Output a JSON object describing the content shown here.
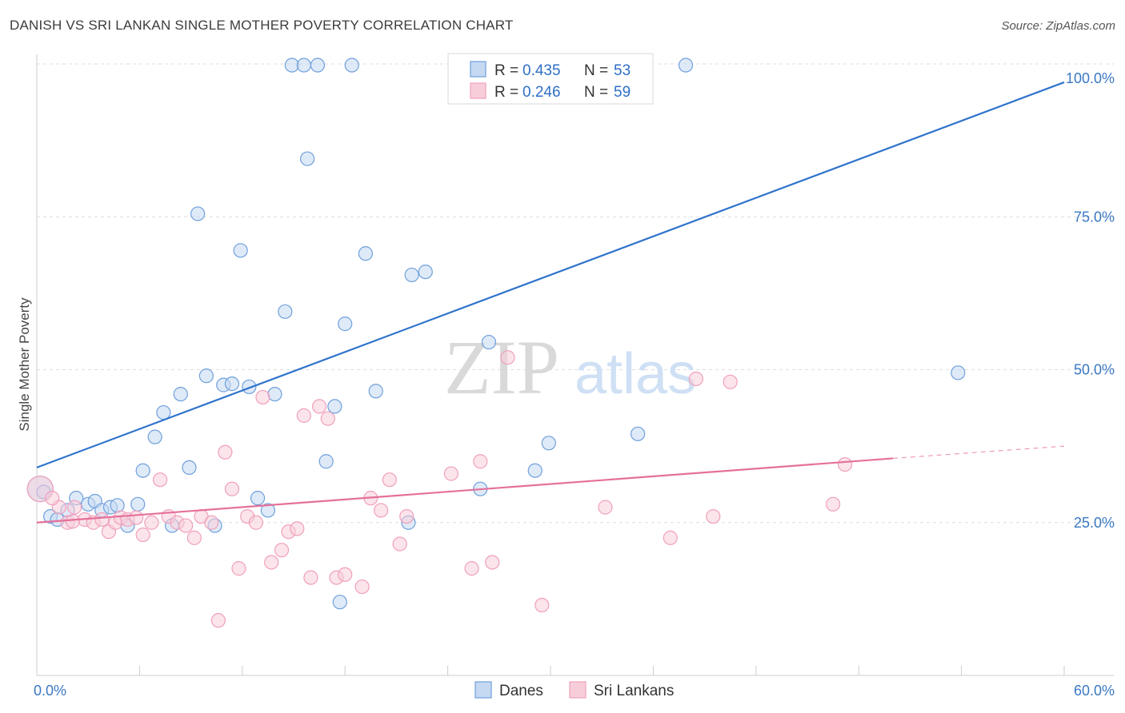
{
  "title": "DANISH VS SRI LANKAN SINGLE MOTHER POVERTY CORRELATION CHART",
  "source": "Source: ZipAtlas.com",
  "watermark": {
    "zip": "ZIP",
    "atlas": "atlas"
  },
  "chart_data": {
    "type": "scatter",
    "ylabel": "Single Mother Poverty",
    "xlim": [
      0,
      60
    ],
    "ylim": [
      0,
      100
    ],
    "x_ticks": [
      "0.0%",
      "60.0%"
    ],
    "y_ticks": [
      {
        "value": 100,
        "label": "100.0%"
      },
      {
        "value": 75,
        "label": "75.0%"
      },
      {
        "value": 50,
        "label": "50.0%"
      },
      {
        "value": 25,
        "label": "25.0%"
      }
    ],
    "grid": true,
    "legend_position": "top-center",
    "legend": [
      {
        "r_label": "R = ",
        "r_value": "0.435",
        "n_label": "N = ",
        "n_value": "53",
        "color": "#6fa0dc"
      },
      {
        "r_label": "R = ",
        "r_value": "0.246",
        "n_label": "N = ",
        "n_value": "59",
        "color": "#f0a0bc"
      }
    ],
    "series": [
      {
        "name": "Danes",
        "color": "#6fa0dc",
        "fill": "#c5d9f2",
        "trend": {
          "x0": 0,
          "y0": 34,
          "x1": 60,
          "y1": 97
        },
        "points": [
          [
            0.2,
            30.5
          ],
          [
            0.8,
            26
          ],
          [
            1.2,
            25.5
          ],
          [
            1.8,
            27
          ],
          [
            2.3,
            29
          ],
          [
            3.0,
            28
          ],
          [
            3.4,
            28.5
          ],
          [
            3.8,
            27
          ],
          [
            4.3,
            27.5
          ],
          [
            4.7,
            27.8
          ],
          [
            5.3,
            24.5
          ],
          [
            5.9,
            28
          ],
          [
            6.2,
            33.5
          ],
          [
            6.9,
            39
          ],
          [
            7.4,
            43
          ],
          [
            7.9,
            24.5
          ],
          [
            8.4,
            46
          ],
          [
            8.9,
            34
          ],
          [
            9.4,
            75.5
          ],
          [
            9.9,
            49
          ],
          [
            10.4,
            24.5
          ],
          [
            10.9,
            47.5
          ],
          [
            11.4,
            47.7
          ],
          [
            11.9,
            69.5
          ],
          [
            12.4,
            47.2
          ],
          [
            12.9,
            29
          ],
          [
            13.5,
            27
          ],
          [
            13.9,
            46
          ],
          [
            14.5,
            59.5
          ],
          [
            14.9,
            99.8
          ],
          [
            15.6,
            99.8
          ],
          [
            15.8,
            84.5
          ],
          [
            16.4,
            99.8
          ],
          [
            16.9,
            35
          ],
          [
            17.4,
            44
          ],
          [
            17.7,
            12
          ],
          [
            18.0,
            57.5
          ],
          [
            18.4,
            99.8
          ],
          [
            19.2,
            69
          ],
          [
            19.8,
            46.5
          ],
          [
            21.7,
            25
          ],
          [
            21.9,
            65.5
          ],
          [
            22.7,
            66
          ],
          [
            25.4,
            99.8
          ],
          [
            25.9,
            30.5
          ],
          [
            26.4,
            54.5
          ],
          [
            28.3,
            99.8
          ],
          [
            29.1,
            33.5
          ],
          [
            29.9,
            38
          ],
          [
            35.1,
            39.5
          ],
          [
            37.9,
            99.8
          ],
          [
            53.8,
            49.5
          ],
          [
            0.4,
            30
          ]
        ]
      },
      {
        "name": "Sri Lankans",
        "color": "#f0a0bc",
        "fill": "#f7cdd9",
        "trend": {
          "x0": 0,
          "y0": 25,
          "x1": 50,
          "y1": 35.5,
          "dash_x1": 60,
          "dash_y1": 37.5
        },
        "points": [
          [
            0.2,
            30.5
          ],
          [
            1.3,
            27.5
          ],
          [
            1.8,
            25
          ],
          [
            2.2,
            27.5
          ],
          [
            2.8,
            25.5
          ],
          [
            3.3,
            25
          ],
          [
            3.8,
            25.5
          ],
          [
            4.2,
            23.5
          ],
          [
            4.6,
            25
          ],
          [
            4.9,
            25.8
          ],
          [
            5.3,
            25.5
          ],
          [
            5.8,
            25.8
          ],
          [
            6.2,
            23
          ],
          [
            6.7,
            25
          ],
          [
            7.2,
            32
          ],
          [
            7.7,
            26
          ],
          [
            8.2,
            25
          ],
          [
            8.7,
            24.5
          ],
          [
            9.2,
            22.5
          ],
          [
            9.6,
            26
          ],
          [
            10.2,
            25
          ],
          [
            10.6,
            9
          ],
          [
            11.0,
            36.5
          ],
          [
            11.4,
            30.5
          ],
          [
            11.8,
            17.5
          ],
          [
            12.3,
            26
          ],
          [
            12.8,
            25
          ],
          [
            13.2,
            45.5
          ],
          [
            13.7,
            18.5
          ],
          [
            14.3,
            20.5
          ],
          [
            14.7,
            23.5
          ],
          [
            15.2,
            24
          ],
          [
            15.6,
            42.5
          ],
          [
            16.0,
            16
          ],
          [
            16.5,
            44
          ],
          [
            17.0,
            42
          ],
          [
            17.5,
            16
          ],
          [
            18.0,
            16.5
          ],
          [
            19.5,
            29
          ],
          [
            20.1,
            27
          ],
          [
            20.6,
            32
          ],
          [
            21.2,
            21.5
          ],
          [
            21.6,
            26
          ],
          [
            24.2,
            33
          ],
          [
            25.4,
            17.5
          ],
          [
            25.9,
            35
          ],
          [
            26.6,
            18.5
          ],
          [
            27.5,
            52
          ],
          [
            29.5,
            11.5
          ],
          [
            33.2,
            27.5
          ],
          [
            37.0,
            22.5
          ],
          [
            38.5,
            48.5
          ],
          [
            39.5,
            26
          ],
          [
            40.5,
            48
          ],
          [
            46.5,
            28
          ],
          [
            47.2,
            34.5
          ],
          [
            0.9,
            29
          ],
          [
            2.1,
            25.2
          ],
          [
            19.0,
            14.5
          ]
        ]
      }
    ]
  }
}
